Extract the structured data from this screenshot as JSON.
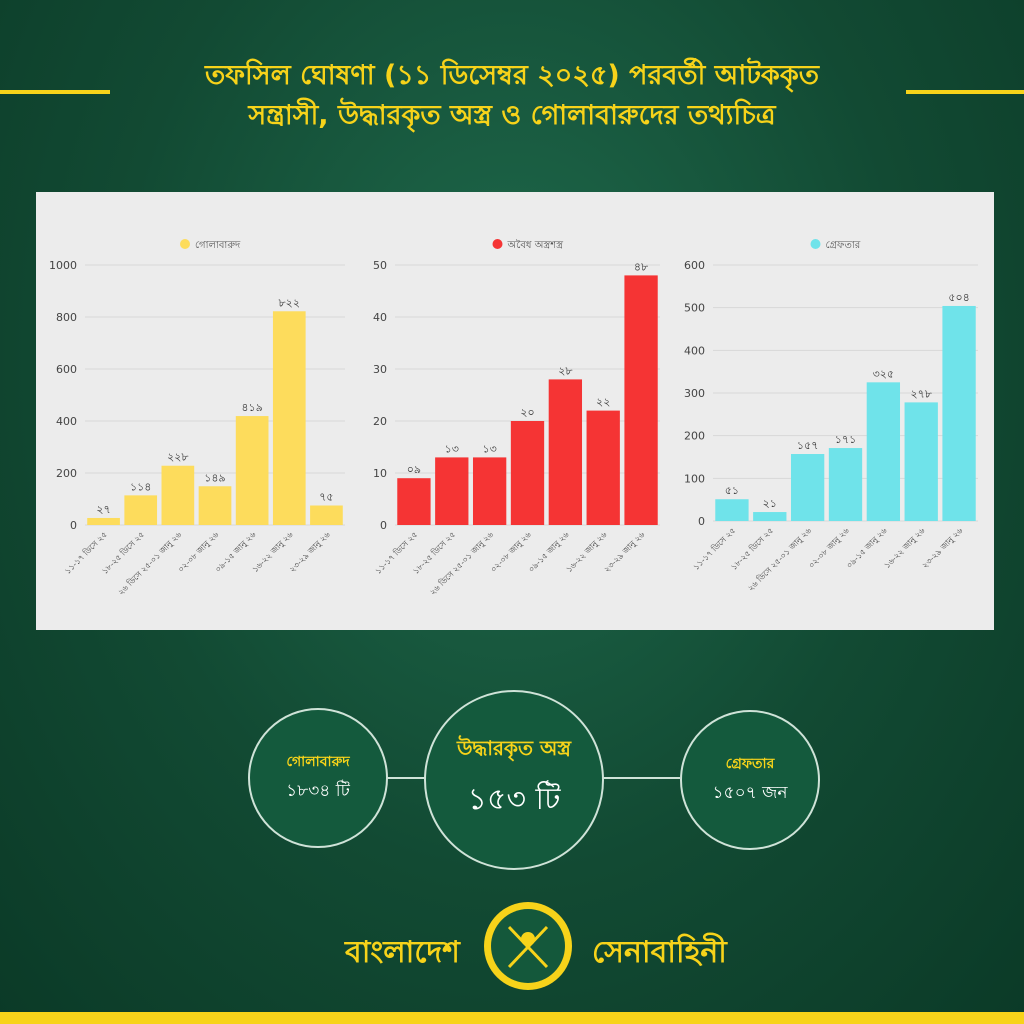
{
  "header": {
    "title_line1": "তফসিল ঘোষণা (১১ ডিসেম্বর ২০২৫) পরবর্তী আটককৃত",
    "title_line2": "সন্ত্রাসী, উদ্ধারকৃত অস্ত্র ও গোলাবারুদের তথ্যচিত্র"
  },
  "colors": {
    "accent": "#f7d31a",
    "background": "#124a33",
    "panel": "#ececec"
  },
  "chart_data": [
    {
      "type": "bar",
      "legend": "গোলাবারুদ",
      "color": "#fddc5c",
      "categories": [
        "১১-১৭ ডিসে ২৫",
        "১৮-২৫ ডিসে ২৫",
        "২৬ ডিসে ২৫-০১ জানু ২৬",
        "০২-০৮ জানু ২৬",
        "০৯-১৫ জানু ২৬",
        "১৬-২২ জানু ২৬",
        "২৩-২৯ জানু ২৬"
      ],
      "values": [
        27,
        114,
        228,
        149,
        419,
        822,
        75
      ],
      "data_labels": [
        "২৭",
        "১১৪",
        "২২৮",
        "১৪৯",
        "৪১৯",
        "৮২২",
        "৭৫"
      ],
      "ylim": [
        0,
        1000
      ],
      "yticks": [
        0,
        200,
        400,
        600,
        800,
        1000
      ],
      "grid": true,
      "legend_placement": "top"
    },
    {
      "type": "bar",
      "legend": "অবৈধ অস্ত্রশস্ত্র",
      "color": "#f53434",
      "categories": [
        "১১-১৭ ডিসে ২৫",
        "১৮-২৫ ডিসে ২৫",
        "২৬ ডিসে ২৫-০১ জানু ২৬",
        "০২-০৮ জানু ২৬",
        "০৯-১৫ জানু ২৬",
        "১৬-২২ জানু ২৬",
        "২৩-২৯ জানু ২৬"
      ],
      "values": [
        9,
        13,
        13,
        20,
        28,
        22,
        48
      ],
      "data_labels": [
        "০৯",
        "১৩",
        "১৩",
        "২০",
        "২৮",
        "২২",
        "৪৮"
      ],
      "ylim": [
        0,
        50
      ],
      "yticks": [
        0,
        10,
        20,
        30,
        40,
        50
      ],
      "grid": true,
      "legend_placement": "top"
    },
    {
      "type": "bar",
      "legend": "গ্রেফতার",
      "color": "#6fe3ea",
      "categories": [
        "১১-১৭ ডিসে ২৫",
        "১৮-২৫ ডিসে ২৫",
        "২৬ ডিসে ২৫-০১ জানু ২৬",
        "০২-০৮ জানু ২৬",
        "০৯-১৫ জানু ২৬",
        "১৬-২২ জানু ২৬",
        "২৩-২৯ জানু ২৬"
      ],
      "values": [
        51,
        21,
        157,
        171,
        325,
        278,
        504
      ],
      "data_labels": [
        "৫১",
        "২১",
        "১৫৭",
        "১৭১",
        "৩২৫",
        "২৭৮",
        "৫০৪"
      ],
      "ylim": [
        0,
        600
      ],
      "yticks": [
        0,
        100,
        200,
        300,
        400,
        500,
        600
      ],
      "grid": true,
      "legend_placement": "top"
    }
  ],
  "summary": {
    "ammo": {
      "label": "গোলাবারুদ",
      "value": "১৮৩৪ টি"
    },
    "weapons": {
      "label": "উদ্ধারকৃত অস্ত্র",
      "value": "১৫৩ টি"
    },
    "arrests": {
      "label": "গ্রেফতার",
      "value": "১৫০৭ জন"
    }
  },
  "footer": {
    "left": "বাংলাদেশ",
    "right": "সেনাবাহিনী",
    "logo": "bangladesh-army-emblem"
  }
}
